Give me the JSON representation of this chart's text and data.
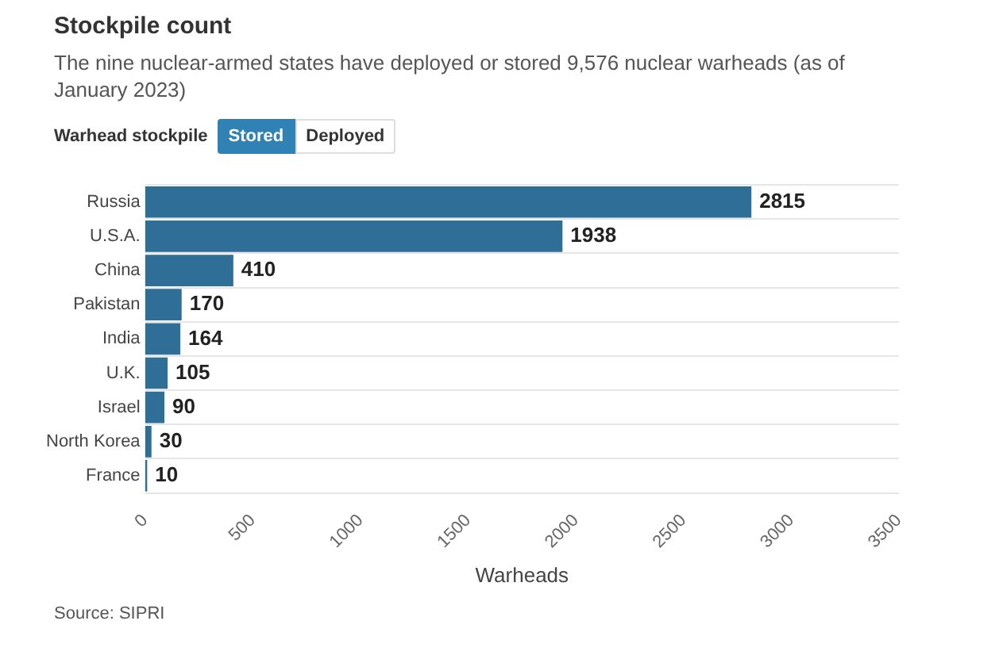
{
  "chart_data": {
    "type": "bar",
    "orientation": "horizontal",
    "title": "Stockpile count",
    "subtitle": "The nine nuclear-armed states have deployed or stored 9,576 nuclear warheads (as of January 2023)",
    "xlabel": "Warheads",
    "categories": [
      "Russia",
      "U.S.A.",
      "China",
      "Pakistan",
      "India",
      "U.K.",
      "Israel",
      "North Korea",
      "France"
    ],
    "values": [
      2815,
      1938,
      410,
      170,
      164,
      105,
      90,
      30,
      10
    ],
    "color": "#2f6f97",
    "xlim": [
      0,
      3500
    ],
    "xticks": [
      0,
      500,
      1000,
      1500,
      2000,
      2500,
      3000,
      3500
    ],
    "grid": "y",
    "data_labels": true,
    "legend": false,
    "annotations": [
      "Warhead stockpile",
      "Stored",
      "Deployed",
      "Source: SIPRI"
    ]
  }
}
